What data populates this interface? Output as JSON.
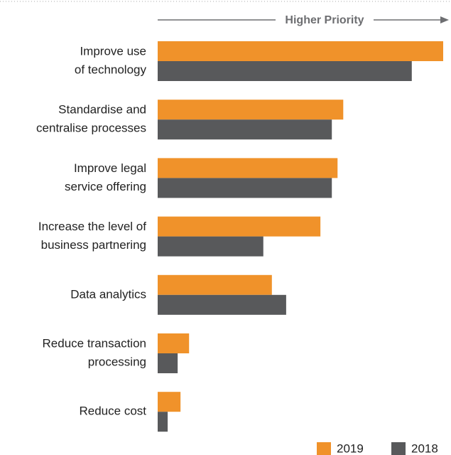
{
  "chart_data": {
    "type": "barh",
    "header": "Higher Priority",
    "categories": [
      [
        "Improve use",
        "of technology"
      ],
      [
        "Standardise and",
        "centralise processes"
      ],
      [
        "Improve legal",
        "service offering"
      ],
      [
        "Increase the level of",
        "business partnering"
      ],
      [
        "Data analytics"
      ],
      [
        "Reduce transaction",
        "processing"
      ],
      [
        "Reduce cost"
      ]
    ],
    "series": [
      {
        "name": "2019",
        "color": "#f0922a",
        "values": [
          100,
          65,
          63,
          57,
          40,
          11,
          8
        ]
      },
      {
        "name": "2018",
        "color": "#58595b",
        "values": [
          89,
          61,
          61,
          37,
          45,
          7,
          3.5
        ]
      }
    ],
    "xlim": [
      0,
      100
    ],
    "legend": "bottom-right"
  }
}
